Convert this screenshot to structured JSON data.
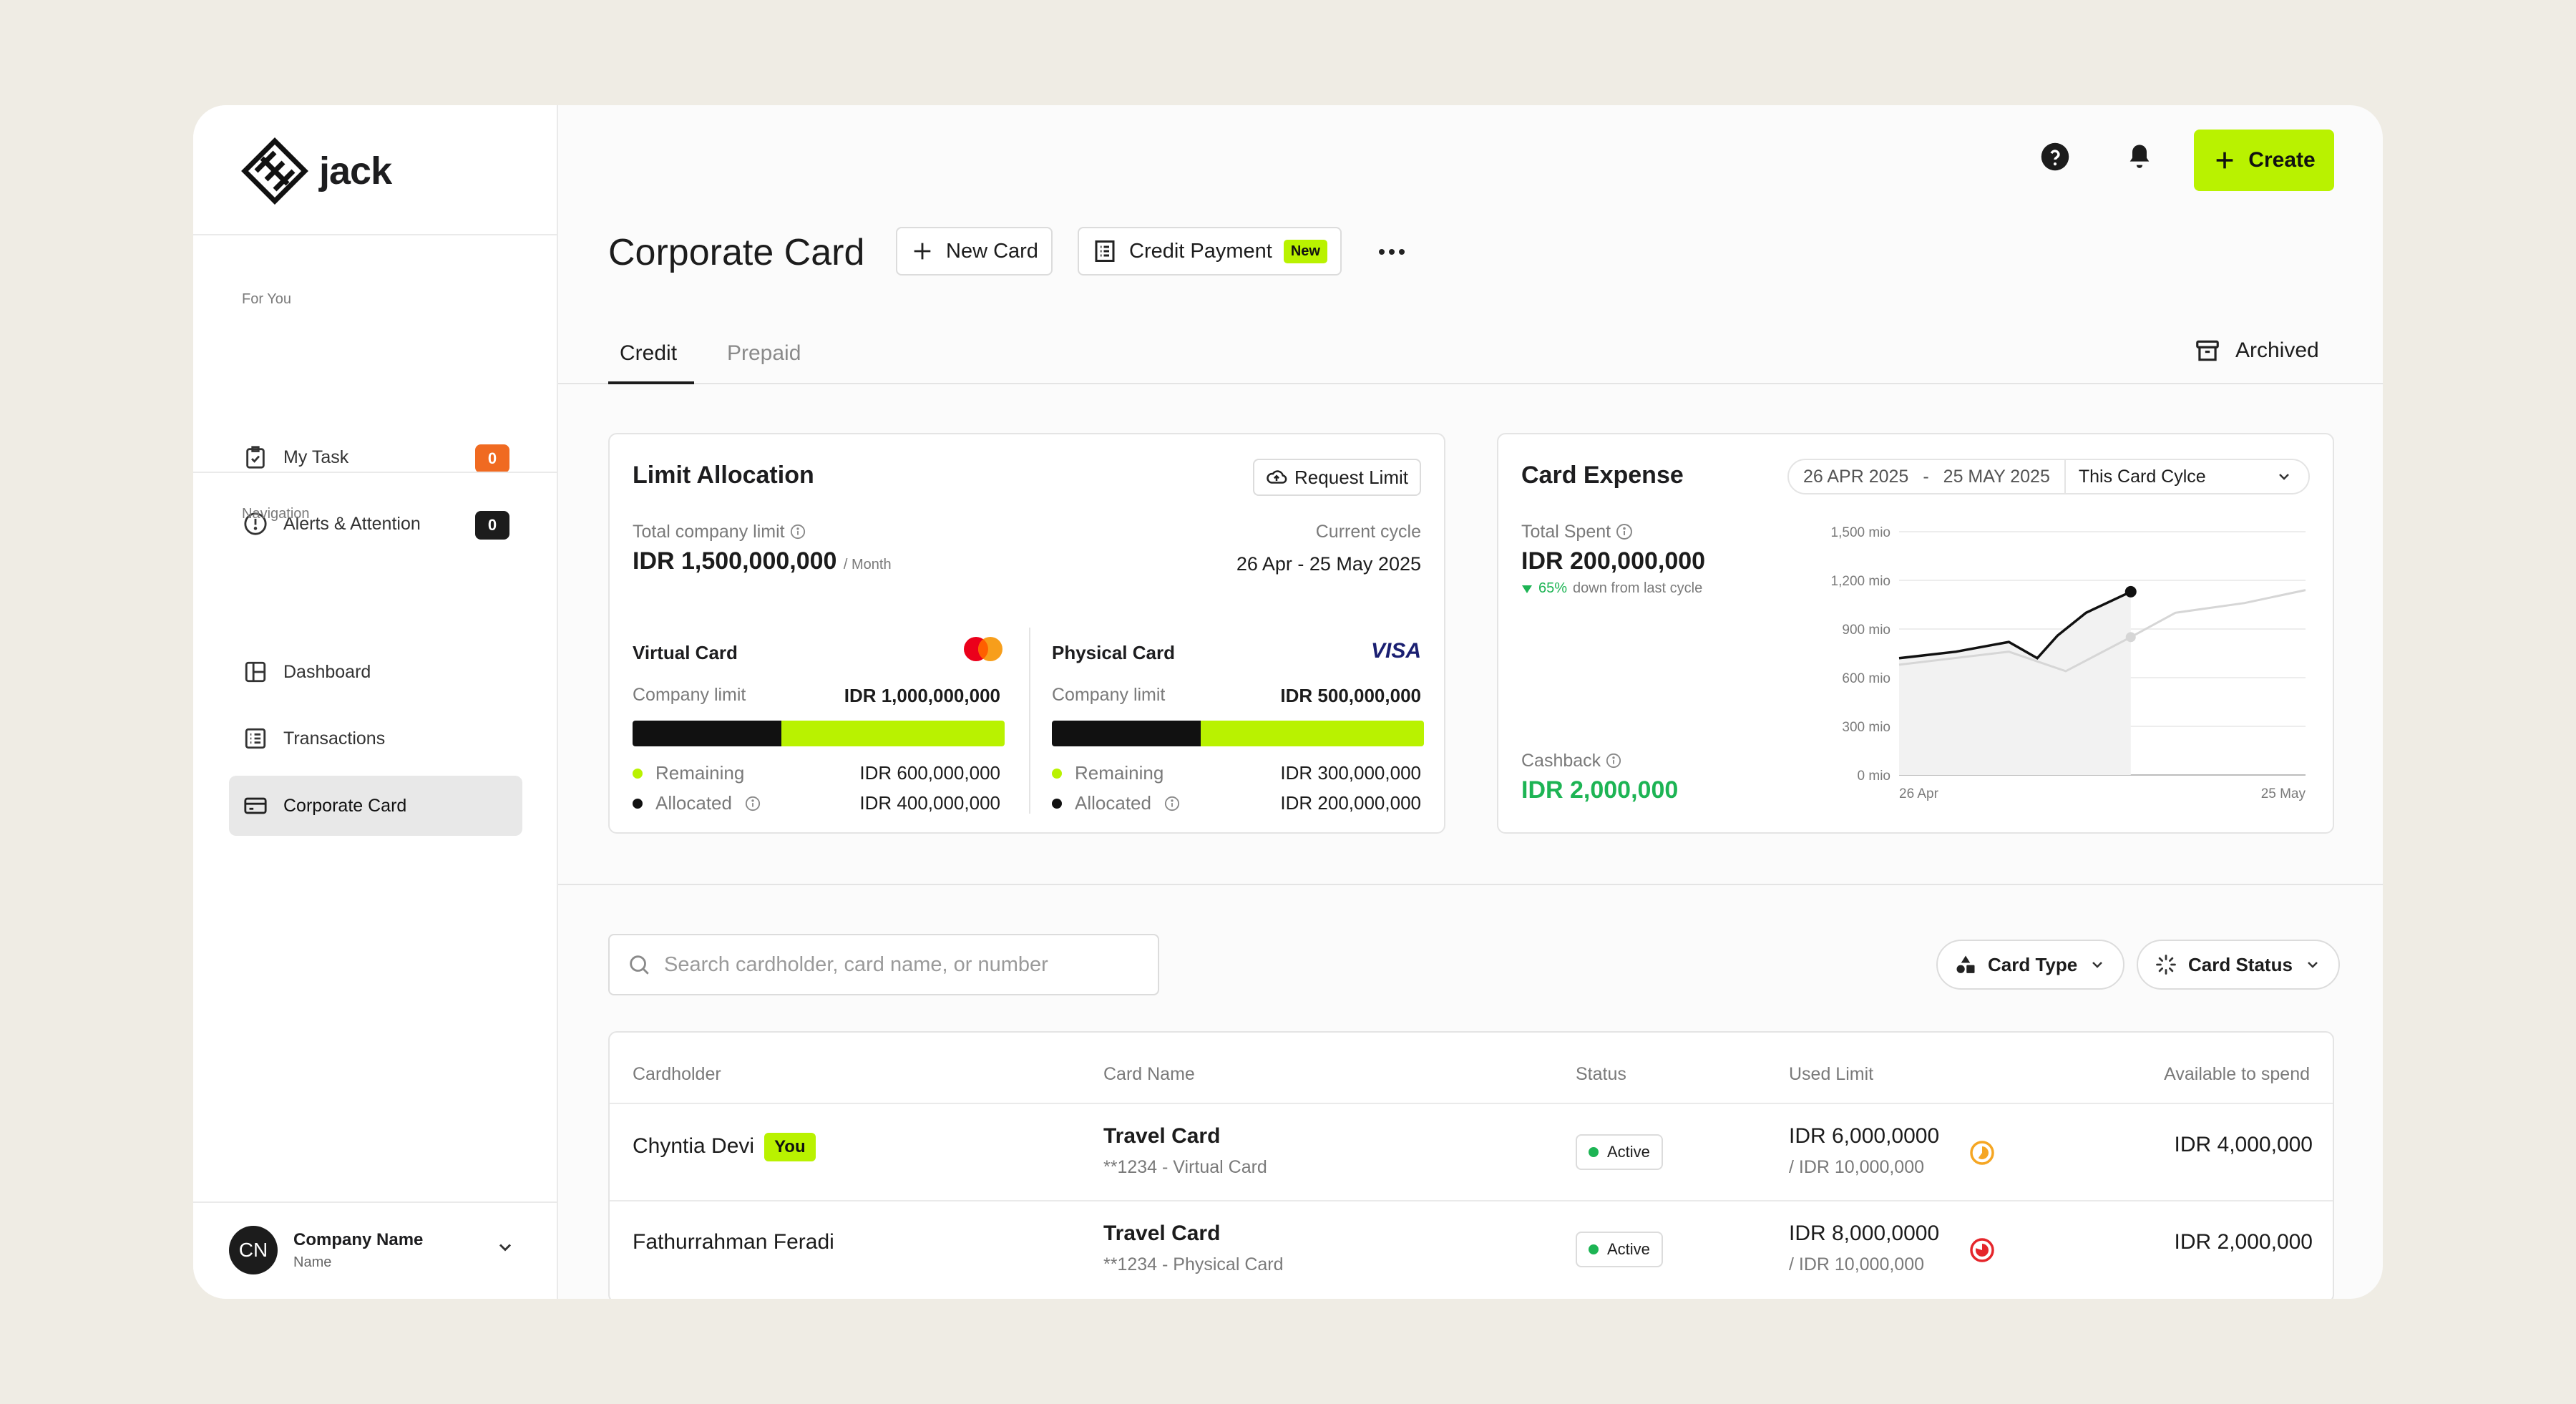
{
  "app": {
    "name": "jack"
  },
  "sidebar": {
    "section_for_you": "For You",
    "my_task": {
      "label": "My Task",
      "count": "0"
    },
    "alerts": {
      "label": "Alerts & Attention",
      "count": "0"
    },
    "section_navigation": "Navigation",
    "items": [
      {
        "label": "Dashboard"
      },
      {
        "label": "Transactions"
      },
      {
        "label": "Corporate Card"
      }
    ],
    "profile": {
      "initials": "CN",
      "name": "Company Name",
      "sub": "Name"
    }
  },
  "topbar": {
    "create_label": "Create"
  },
  "header": {
    "title": "Corporate Card",
    "new_card_label": "New Card",
    "credit_payment_label": "Credit Payment",
    "new_tag": "New"
  },
  "tabs": {
    "credit": "Credit",
    "prepaid": "Prepaid",
    "archived": "Archived"
  },
  "limit": {
    "title": "Limit Allocation",
    "request_label": "Request Limit",
    "total_label": "Total company limit",
    "total_value": "IDR 1,500,000,000",
    "total_unit": "/ Month",
    "cycle_label": "Current cycle",
    "cycle_value": "26 Apr - 25 May 2025",
    "virtual": {
      "title": "Virtual Card",
      "limit_label": "Company limit",
      "limit_value": "IDR 1,000,000,000",
      "remaining_label": "Remaining",
      "remaining_value": "IDR 600,000,000",
      "allocated_label": "Allocated",
      "allocated_value": "IDR 400,000,000",
      "allocated_fraction": 0.4
    },
    "physical": {
      "title": "Physical Card",
      "brand": "VISA",
      "limit_label": "Company limit",
      "limit_value": "IDR 500,000,000",
      "remaining_label": "Remaining",
      "remaining_value": "IDR 300,000,000",
      "allocated_label": "Allocated",
      "allocated_value": "IDR 200,000,000",
      "allocated_fraction": 0.4
    }
  },
  "expense": {
    "title": "Card Expense",
    "date_from": "26 APR 2025",
    "date_sep": "-",
    "date_to": "25 MAY 2025",
    "cycle_option": "This Card Cylce",
    "total_label": "Total Spent",
    "total_value": "IDR 200,000,000",
    "change_value": "65%",
    "change_text": "down from last cycle",
    "cashback_label": "Cashback",
    "cashback_value": "IDR 2,000,000"
  },
  "chart_data": {
    "type": "line",
    "xlabel": "",
    "ylabel": "",
    "x_tick_labels": [
      "26 Apr",
      "25 May"
    ],
    "y_ticks": [
      {
        "v": 0,
        "label": "0 mio"
      },
      {
        "v": 300,
        "label": "300 mio"
      },
      {
        "v": 600,
        "label": "600 mio"
      },
      {
        "v": 900,
        "label": "900 mio"
      },
      {
        "v": 1200,
        "label": "1,200 mio"
      },
      {
        "v": 1500,
        "label": "1,500 mio"
      }
    ],
    "ylim": [
      0,
      1500
    ],
    "x_range": [
      0,
      1
    ],
    "series": [
      {
        "x": [
          0,
          0.14,
          0.27,
          0.34,
          0.39,
          0.46,
          0.57
        ],
        "values": [
          720,
          760,
          820,
          720,
          860,
          1000,
          1130
        ]
      },
      {
        "x": [
          0,
          0.27,
          0.41,
          0.57,
          0.68,
          0.85,
          1.0
        ],
        "values": [
          680,
          760,
          640,
          850,
          1000,
          1060,
          1140
        ]
      }
    ],
    "colors": {
      "current": "#111111",
      "previous": "#D6D6D6"
    },
    "grid": true
  },
  "search": {
    "placeholder": "Search cardholder, card name, or number"
  },
  "filters": {
    "card_type": "Card Type",
    "card_status": "Card Status"
  },
  "table": {
    "headers": [
      "Cardholder",
      "Card Name",
      "Status",
      "Used Limit",
      "Available to spend"
    ],
    "rows": [
      {
        "cardholder": "Chyntia Devi",
        "you_tag": "You",
        "card_name": "Travel Card",
        "card_sub": "**1234 - Virtual Card",
        "status": "Active",
        "used": "IDR 6,000,0000",
        "used_of": "/ IDR 10,000,000",
        "available": "IDR 4,000,000",
        "usage_fraction": 0.6,
        "usage_color": "#F5A623"
      },
      {
        "cardholder": "Fathurrahman Feradi",
        "card_name": "Travel Card",
        "card_sub": "**1234 - Physical Card",
        "status": "Active",
        "used": "IDR 8,000,0000",
        "used_of": "/ IDR 10,000,000",
        "available": "IDR 2,000,000",
        "usage_fraction": 0.8,
        "usage_color": "#E5262B"
      }
    ]
  },
  "colors": {
    "accent": "#B9F200",
    "success": "#1DB454",
    "orange_badge": "#F06A21"
  }
}
